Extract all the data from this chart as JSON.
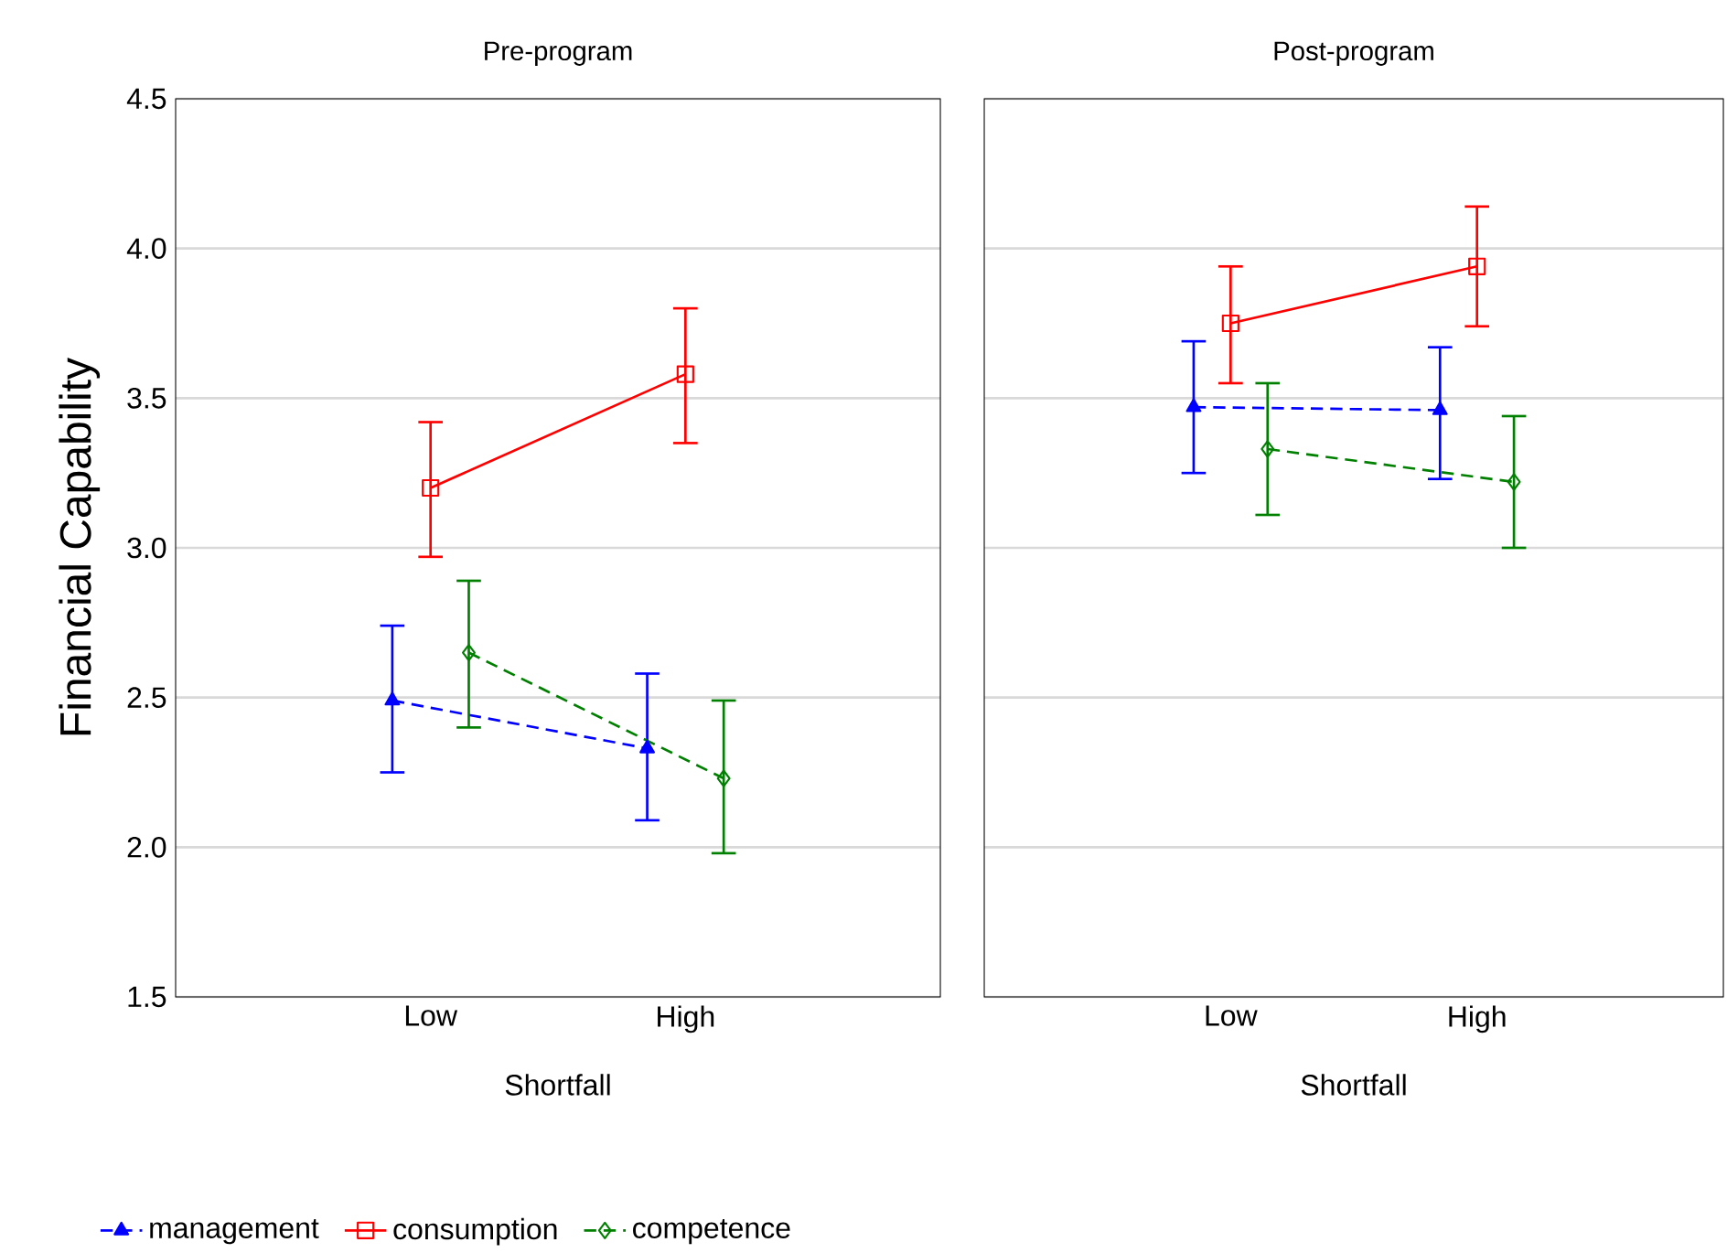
{
  "chart_data": [
    {
      "type": "line",
      "title": "Pre-program",
      "xlabel": "Shortfall",
      "ylabel": "Financial Capability",
      "categories": [
        "Low",
        "High"
      ],
      "ylim": [
        1.5,
        4.5
      ],
      "yticks": [
        {
          "value": 1.5,
          "label": "1.5"
        },
        {
          "value": 2,
          "label": "2.0"
        },
        {
          "value": 2.5,
          "label": "2.5"
        },
        {
          "value": 3,
          "label": "3.0"
        },
        {
          "value": 3.5,
          "label": "3.5"
        },
        {
          "value": 4,
          "label": "4.0"
        },
        {
          "value": 4.5,
          "label": "4.5"
        }
      ],
      "grid": "y",
      "legend": "bottom",
      "series": [
        {
          "name": "management",
          "color": "#0000ff",
          "values": [
            2.49,
            2.33
          ],
          "errors": [
            [
              2.25,
              2.74
            ],
            [
              2.09,
              2.58
            ]
          ],
          "marker": "triangle",
          "line_style": "dashed"
        },
        {
          "name": "consumption",
          "color": "#ff0000",
          "values": [
            3.2,
            3.58
          ],
          "errors": [
            [
              2.97,
              3.42
            ],
            [
              3.35,
              3.8
            ]
          ],
          "marker": "square",
          "line_style": "solid"
        },
        {
          "name": "competence",
          "color": "#008000",
          "values": [
            2.65,
            2.23
          ],
          "errors": [
            [
              2.4,
              2.89
            ],
            [
              1.98,
              2.49
            ]
          ],
          "marker": "diamond",
          "line_style": "dashed"
        }
      ]
    },
    {
      "type": "line",
      "title": "Post-program",
      "xlabel": "Shortfall",
      "categories": [
        "Low",
        "High"
      ],
      "ylim": [
        1.5,
        4.5
      ],
      "yticks": [
        {
          "value": 1.5,
          "label": null
        },
        {
          "value": 2,
          "label": null
        },
        {
          "value": 2.5,
          "label": null
        },
        {
          "value": 3,
          "label": null
        },
        {
          "value": 3.5,
          "label": null
        },
        {
          "value": 4,
          "label": null
        },
        {
          "value": 4.5,
          "label": null
        }
      ],
      "grid": "y",
      "tick_labels": "x",
      "series": [
        {
          "color": "#0000ff",
          "values": [
            3.47,
            3.46
          ],
          "errors": [
            [
              3.25,
              3.69
            ],
            [
              3.23,
              3.67
            ]
          ],
          "marker": "triangle",
          "line_style": "dashed"
        },
        {
          "color": "#ff0000",
          "values": [
            3.75,
            3.94
          ],
          "errors": [
            [
              3.55,
              3.94
            ],
            [
              3.74,
              4.14
            ]
          ],
          "marker": "square",
          "line_style": "solid"
        },
        {
          "color": "#008000",
          "values": [
            3.33,
            3.22
          ],
          "errors": [
            [
              3.11,
              3.55
            ],
            [
              3.0,
              3.44
            ]
          ],
          "marker": "diamond",
          "line_style": "dashed"
        }
      ]
    }
  ]
}
